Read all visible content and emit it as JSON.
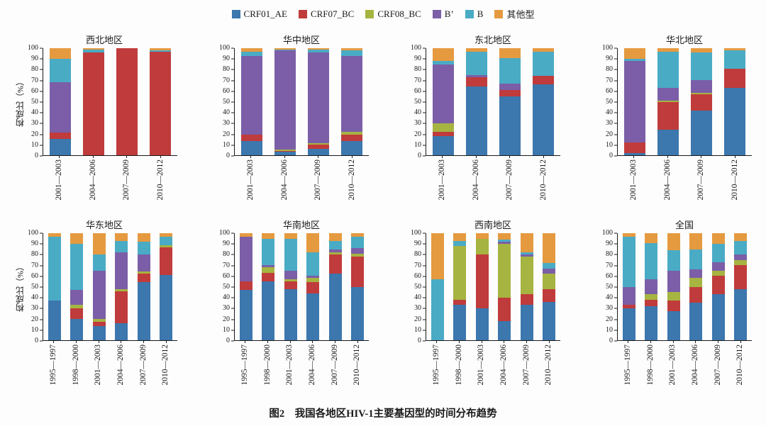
{
  "caption": {
    "prefix": "图2",
    "text": "　我国各地区HIV-1主要基因型的时间分布趋势"
  },
  "chart_data": {
    "type": "bar",
    "stacked": true,
    "ylabel": "构成比（%）",
    "ylim": [
      0,
      100
    ],
    "yticks": [
      0,
      10,
      20,
      30,
      40,
      50,
      60,
      70,
      80,
      90,
      100
    ],
    "legend_position": "top-center",
    "series_names": [
      "CRF01_AE",
      "CRF07_BC",
      "CRF08_BC",
      "B’",
      "B",
      "其他型"
    ],
    "series_colors": [
      "#3c77ae",
      "#c03b3b",
      "#a6b441",
      "#7b5ea7",
      "#4aabc5",
      "#e59a40"
    ],
    "panels": [
      {
        "title": "西北地区",
        "categories": [
          "2001—2003",
          "2004—2006",
          "2007—2009",
          "2010—2012"
        ],
        "series": [
          {
            "name": "CRF01_AE",
            "values": [
              15,
              0,
              0,
              0
            ]
          },
          {
            "name": "CRF07_BC",
            "values": [
              6,
              96,
              100,
              97
            ]
          },
          {
            "name": "CRF08_BC",
            "values": [
              0,
              0,
              0,
              0
            ]
          },
          {
            "name": "B’",
            "values": [
              47,
              0,
              0,
              0
            ]
          },
          {
            "name": "B",
            "values": [
              22,
              3,
              0,
              1
            ]
          },
          {
            "name": "其他型",
            "values": [
              10,
              1,
              0,
              2
            ]
          }
        ]
      },
      {
        "title": "华中地区",
        "categories": [
          "2001—2003",
          "2004—2006",
          "2007—2009",
          "2010—2012"
        ],
        "series": [
          {
            "name": "CRF01_AE",
            "values": [
              13,
              3,
              6,
              13
            ]
          },
          {
            "name": "CRF07_BC",
            "values": [
              6,
              1,
              4,
              6
            ]
          },
          {
            "name": "CRF08_BC",
            "values": [
              0,
              1,
              1,
              3
            ]
          },
          {
            "name": "B’",
            "values": [
              74,
              93,
              85,
              71
            ]
          },
          {
            "name": "B",
            "values": [
              4,
              1,
              3,
              5
            ]
          },
          {
            "name": "其他型",
            "values": [
              3,
              1,
              1,
              2
            ]
          }
        ]
      },
      {
        "title": "东北地区",
        "categories": [
          "2001—2003",
          "2004—2006",
          "2007—2009",
          "2010—2012"
        ],
        "series": [
          {
            "name": "CRF01_AE",
            "values": [
              18,
              64,
              55,
              66
            ]
          },
          {
            "name": "CRF07_BC",
            "values": [
              4,
              9,
              6,
              8
            ]
          },
          {
            "name": "CRF08_BC",
            "values": [
              8,
              0,
              0,
              0
            ]
          },
          {
            "name": "B’",
            "values": [
              55,
              2,
              6,
              0
            ]
          },
          {
            "name": "B",
            "values": [
              3,
              22,
              24,
              23
            ]
          },
          {
            "name": "其他型",
            "values": [
              12,
              3,
              9,
              3
            ]
          }
        ]
      },
      {
        "title": "华北地区",
        "categories": [
          "2001—2003",
          "2004—2006",
          "2007—2009",
          "2010—2012"
        ],
        "series": [
          {
            "name": "CRF01_AE",
            "values": [
              2,
              24,
              42,
              63
            ]
          },
          {
            "name": "CRF07_BC",
            "values": [
              10,
              26,
              15,
              18
            ]
          },
          {
            "name": "CRF08_BC",
            "values": [
              0,
              1,
              1,
              0
            ]
          },
          {
            "name": "B’",
            "values": [
              76,
              12,
              12,
              0
            ]
          },
          {
            "name": "B",
            "values": [
              2,
              34,
              26,
              17
            ]
          },
          {
            "name": "其他型",
            "values": [
              10,
              3,
              4,
              2
            ]
          }
        ]
      },
      {
        "title": "华东地区",
        "categories": [
          "1995—1997",
          "1998—2000",
          "2001—2003",
          "2004—2006",
          "2007—2009",
          "2010—2012"
        ],
        "series": [
          {
            "name": "CRF01_AE",
            "values": [
              37,
              20,
              13,
              16,
              54,
              61
            ]
          },
          {
            "name": "CRF07_BC",
            "values": [
              0,
              10,
              4,
              30,
              8,
              26
            ]
          },
          {
            "name": "CRF08_BC",
            "values": [
              0,
              3,
              3,
              2,
              2,
              2
            ]
          },
          {
            "name": "B’",
            "values": [
              0,
              14,
              45,
              34,
              16,
              0
            ]
          },
          {
            "name": "B",
            "values": [
              60,
              43,
              15,
              11,
              12,
              8
            ]
          },
          {
            "name": "其他型",
            "values": [
              3,
              10,
              20,
              7,
              8,
              3
            ]
          }
        ]
      },
      {
        "title": "华南地区",
        "categories": [
          "1995—1997",
          "1998—2000",
          "2001—2003",
          "2004—2006",
          "2007—2009",
          "2010—2012"
        ],
        "series": [
          {
            "name": "CRF01_AE",
            "values": [
              47,
              55,
              48,
              44,
              62,
              50
            ]
          },
          {
            "name": "CRF07_BC",
            "values": [
              8,
              8,
              7,
              10,
              18,
              28
            ]
          },
          {
            "name": "CRF08_BC",
            "values": [
              0,
              5,
              2,
              4,
              2,
              3
            ]
          },
          {
            "name": "B’",
            "values": [
              42,
              2,
              8,
              2,
              3,
              5
            ]
          },
          {
            "name": "B",
            "values": [
              0,
              25,
              30,
              22,
              8,
              11
            ]
          },
          {
            "name": "其他型",
            "values": [
              3,
              5,
              5,
              18,
              7,
              3
            ]
          }
        ]
      },
      {
        "title": "西南地区",
        "categories": [
          "1995—1997",
          "1998—2000",
          "2001—2003",
          "2004—2006",
          "2007—2009",
          "2010—2012"
        ],
        "series": [
          {
            "name": "CRF01_AE",
            "values": [
              0,
              33,
              30,
              18,
              33,
              36
            ]
          },
          {
            "name": "CRF07_BC",
            "values": [
              0,
              5,
              50,
              22,
              10,
              12
            ]
          },
          {
            "name": "CRF08_BC",
            "values": [
              0,
              50,
              15,
              50,
              35,
              14
            ]
          },
          {
            "name": "B’",
            "values": [
              0,
              0,
              0,
              2,
              2,
              5
            ]
          },
          {
            "name": "B",
            "values": [
              57,
              5,
              0,
              2,
              2,
              5
            ]
          },
          {
            "name": "其他型",
            "values": [
              43,
              7,
              5,
              6,
              18,
              28
            ]
          }
        ]
      },
      {
        "title": "全国",
        "categories": [
          "1995—1997",
          "1998—2000",
          "2001—2003",
          "2004—2006",
          "2007—2009",
          "2010—2012"
        ],
        "series": [
          {
            "name": "CRF01_AE",
            "values": [
              30,
              32,
              27,
              35,
              43,
              48
            ]
          },
          {
            "name": "CRF07_BC",
            "values": [
              3,
              6,
              10,
              15,
              17,
              22
            ]
          },
          {
            "name": "CRF08_BC",
            "values": [
              0,
              5,
              8,
              8,
              5,
              5
            ]
          },
          {
            "name": "B’",
            "values": [
              17,
              14,
              20,
              8,
              8,
              5
            ]
          },
          {
            "name": "B",
            "values": [
              47,
              34,
              19,
              19,
              17,
              13
            ]
          },
          {
            "name": "其他型",
            "values": [
              3,
              9,
              16,
              15,
              10,
              7
            ]
          }
        ]
      }
    ]
  }
}
